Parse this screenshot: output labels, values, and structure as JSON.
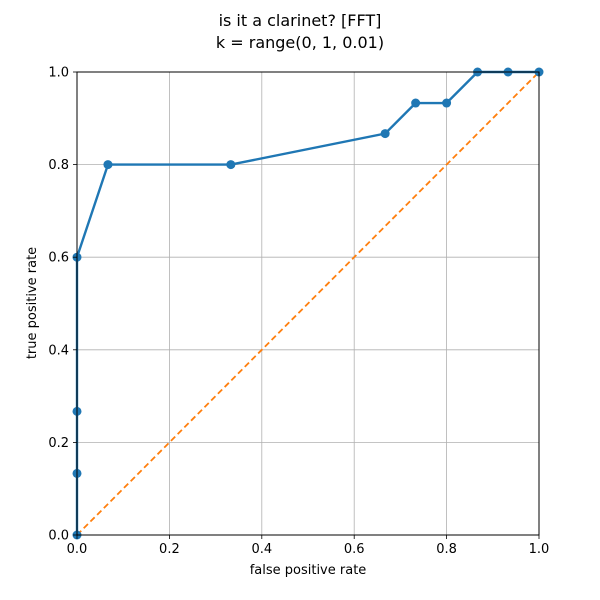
{
  "chart_data": {
    "type": "line",
    "title_lines": [
      "is it a clarinet? [FFT]",
      "k = range(0, 1, 0.01)"
    ],
    "xlabel": "false positive rate",
    "ylabel": "true positive rate",
    "xlim": [
      0,
      1
    ],
    "ylim": [
      0,
      1
    ],
    "xticks": [
      "0.0",
      "0.2",
      "0.4",
      "0.6",
      "0.8",
      "1.0"
    ],
    "yticks": [
      "0.0",
      "0.2",
      "0.4",
      "0.6",
      "0.8",
      "1.0"
    ],
    "grid": true,
    "series": [
      {
        "style": "solid-with-markers",
        "color": "#1f77b4",
        "points": [
          [
            0.0,
            0.0
          ],
          [
            0.0,
            0.133
          ],
          [
            0.0,
            0.267
          ],
          [
            0.0,
            0.6
          ],
          [
            0.067,
            0.8
          ],
          [
            0.333,
            0.8
          ],
          [
            0.667,
            0.867
          ],
          [
            0.733,
            0.933
          ],
          [
            0.8,
            0.933
          ],
          [
            0.867,
            1.0
          ],
          [
            0.933,
            1.0
          ],
          [
            1.0,
            1.0
          ]
        ]
      },
      {
        "style": "dashed",
        "color": "#ff7f0e",
        "points": [
          [
            0.0,
            0.0
          ],
          [
            1.0,
            1.0
          ]
        ]
      }
    ]
  }
}
